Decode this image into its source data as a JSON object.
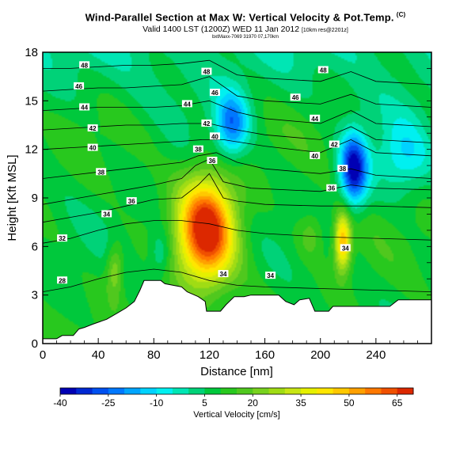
{
  "header": {
    "title": "Wind-Parallel Section at Max W: Vertical Velocity & Pot.Temp.",
    "title_copyright": "(C)",
    "subtitle": "Valid 1400 LST (1200Z) WED 11 Jan 2012",
    "subtitle_suffix": "[10km res@2201z]",
    "line3": "bxtMaxx-7069 31970 07,170km"
  },
  "chart_data": {
    "type": "heatmap",
    "title": "Wind-Parallel Section at Max W: Vertical Velocity & Pot.Temp.",
    "xlabel": "Distance [nm]",
    "ylabel": "Height [Kft MSL]",
    "xlim": [
      0,
      280
    ],
    "ylim": [
      0,
      18
    ],
    "x_ticks": [
      0,
      40,
      80,
      120,
      160,
      200,
      240
    ],
    "y_ticks": [
      0,
      3,
      6,
      9,
      12,
      15,
      18
    ],
    "colorbar": {
      "title": "Vertical Velocity [cm/s]",
      "tick_labels": [
        -40,
        -25,
        -10,
        5,
        20,
        35,
        50,
        65
      ],
      "levels": [
        -40,
        -35,
        -30,
        -25,
        -20,
        -15,
        -10,
        -5,
        0,
        5,
        10,
        15,
        20,
        25,
        30,
        35,
        40,
        45,
        50,
        55,
        60,
        65,
        70
      ],
      "colors": [
        "#0000b4",
        "#0028d2",
        "#0050f0",
        "#0078ff",
        "#00a5ff",
        "#00d2ff",
        "#00f0f0",
        "#00e6b4",
        "#00d278",
        "#00c83c",
        "#28c81e",
        "#50c81e",
        "#78d21e",
        "#a0dc14",
        "#c8e614",
        "#e6f000",
        "#ffe600",
        "#ffc800",
        "#ffa000",
        "#ff7800",
        "#f05000",
        "#dc2800"
      ]
    },
    "terrain": [
      [
        0,
        0.3
      ],
      [
        10,
        0.3
      ],
      [
        14,
        0.5
      ],
      [
        22,
        0.5
      ],
      [
        26,
        0.9
      ],
      [
        30,
        1.0
      ],
      [
        36,
        1.2
      ],
      [
        46,
        1.5
      ],
      [
        54,
        1.9
      ],
      [
        60,
        2.2
      ],
      [
        66,
        2.6
      ],
      [
        70,
        3.3
      ],
      [
        73,
        3.9
      ],
      [
        85,
        3.9
      ],
      [
        88,
        3.7
      ],
      [
        100,
        3.5
      ],
      [
        104,
        3.2
      ],
      [
        112,
        2.9
      ],
      [
        117,
        2.6
      ],
      [
        118,
        2.0
      ],
      [
        128,
        2.0
      ],
      [
        132,
        2.4
      ],
      [
        138,
        2.9
      ],
      [
        145,
        2.9
      ],
      [
        150,
        3.0
      ],
      [
        170,
        3.0
      ],
      [
        175,
        2.6
      ],
      [
        181,
        2.4
      ],
      [
        185,
        2.7
      ],
      [
        192,
        2.8
      ],
      [
        196,
        2.0
      ],
      [
        206,
        2.0
      ],
      [
        209,
        2.3
      ],
      [
        250,
        2.3
      ],
      [
        256,
        2.7
      ],
      [
        280,
        2.7
      ]
    ],
    "updraft_cores": [
      {
        "x": 118,
        "y": 7.0,
        "w": 72,
        "rx": 20,
        "ry": 3.2
      },
      {
        "x": 216,
        "y": 6.3,
        "w": 52,
        "rx": 6,
        "ry": 1.8
      },
      {
        "x": 52,
        "y": 4.6,
        "w": 26,
        "rx": 6,
        "ry": 1.6
      },
      {
        "x": 193,
        "y": 6.8,
        "w": 20,
        "rx": 10,
        "ry": 1.5
      }
    ],
    "downdraft_cores": [
      {
        "x": 224,
        "y": 10.8,
        "w": -38,
        "rx": 10,
        "ry": 2.2
      },
      {
        "x": 136,
        "y": 13.5,
        "w": -22,
        "rx": 12,
        "ry": 2.0
      },
      {
        "x": 260,
        "y": 11.5,
        "w": -8,
        "rx": 20,
        "ry": 2.4
      },
      {
        "x": 85,
        "y": 5.6,
        "w": -4,
        "rx": 8,
        "ry": 1.5
      }
    ],
    "isentropes": [
      {
        "label": "28",
        "points": [
          [
            0,
            3.2
          ],
          [
            20,
            3.5
          ],
          [
            40,
            4.0
          ],
          [
            60,
            4.4
          ],
          [
            80,
            4.6
          ],
          [
            100,
            4.4
          ],
          [
            120,
            3.9
          ],
          [
            140,
            3.6
          ],
          [
            160,
            3.5
          ],
          [
            200,
            3.4
          ],
          [
            240,
            3.3
          ],
          [
            280,
            3.2
          ]
        ]
      },
      {
        "label": "32",
        "points": [
          [
            0,
            6.2
          ],
          [
            20,
            6.5
          ],
          [
            40,
            7.0
          ],
          [
            60,
            7.4
          ],
          [
            80,
            7.6
          ],
          [
            100,
            7.6
          ],
          [
            120,
            7.4
          ],
          [
            140,
            7.0
          ],
          [
            160,
            6.8
          ],
          [
            200,
            6.6
          ],
          [
            240,
            6.5
          ],
          [
            280,
            6.4
          ]
        ]
      },
      {
        "label": "34",
        "points": [
          [
            0,
            7.5
          ],
          [
            20,
            7.8
          ],
          [
            40,
            8.1
          ],
          [
            60,
            8.5
          ],
          [
            80,
            8.9
          ],
          [
            100,
            9.0
          ],
          [
            112,
            9.8
          ],
          [
            120,
            10.5
          ],
          [
            130,
            9.0
          ],
          [
            140,
            8.8
          ],
          [
            160,
            8.6
          ],
          [
            200,
            8.5
          ],
          [
            240,
            8.5
          ],
          [
            280,
            8.4
          ]
        ]
      },
      {
        "label": "36",
        "points": [
          [
            0,
            8.6
          ],
          [
            20,
            8.9
          ],
          [
            40,
            9.2
          ],
          [
            60,
            9.5
          ],
          [
            80,
            9.8
          ],
          [
            100,
            10.2
          ],
          [
            110,
            11.0
          ],
          [
            120,
            11.4
          ],
          [
            130,
            10.0
          ],
          [
            150,
            9.6
          ],
          [
            200,
            9.4
          ],
          [
            222,
            9.8
          ],
          [
            240,
            9.6
          ],
          [
            280,
            9.5
          ]
        ]
      },
      {
        "label": "38",
        "points": [
          [
            0,
            10.2
          ],
          [
            20,
            10.4
          ],
          [
            40,
            10.6
          ],
          [
            60,
            10.8
          ],
          [
            80,
            11.0
          ],
          [
            100,
            11.2
          ],
          [
            112,
            11.6
          ],
          [
            125,
            11.8
          ],
          [
            140,
            11.2
          ],
          [
            160,
            10.8
          ],
          [
            200,
            10.5
          ],
          [
            222,
            10.8
          ],
          [
            240,
            10.4
          ],
          [
            280,
            10.2
          ]
        ]
      },
      {
        "label": "40",
        "points": [
          [
            0,
            12.0
          ],
          [
            20,
            12.1
          ],
          [
            40,
            12.2
          ],
          [
            60,
            12.3
          ],
          [
            80,
            12.4
          ],
          [
            100,
            12.5
          ],
          [
            115,
            12.6
          ],
          [
            130,
            12.6
          ],
          [
            160,
            12.2
          ],
          [
            200,
            11.8
          ],
          [
            222,
            12.6
          ],
          [
            240,
            11.8
          ],
          [
            280,
            11.6
          ]
        ]
      },
      {
        "label": "42",
        "points": [
          [
            0,
            13.2
          ],
          [
            20,
            13.3
          ],
          [
            40,
            13.4
          ],
          [
            60,
            13.5
          ],
          [
            80,
            13.5
          ],
          [
            100,
            13.6
          ],
          [
            120,
            13.6
          ],
          [
            140,
            13.2
          ],
          [
            160,
            12.9
          ],
          [
            200,
            12.6
          ],
          [
            222,
            13.4
          ],
          [
            240,
            12.6
          ],
          [
            280,
            12.4
          ]
        ]
      },
      {
        "label": "44",
        "points": [
          [
            0,
            14.4
          ],
          [
            20,
            14.5
          ],
          [
            40,
            14.6
          ],
          [
            60,
            14.6
          ],
          [
            80,
            14.6
          ],
          [
            100,
            14.7
          ],
          [
            120,
            15.0
          ],
          [
            140,
            14.3
          ],
          [
            160,
            13.9
          ],
          [
            200,
            13.6
          ],
          [
            222,
            14.4
          ],
          [
            240,
            13.6
          ],
          [
            280,
            13.4
          ]
        ]
      },
      {
        "label": "46",
        "points": [
          [
            0,
            15.6
          ],
          [
            20,
            15.7
          ],
          [
            40,
            15.8
          ],
          [
            60,
            15.8
          ],
          [
            80,
            15.9
          ],
          [
            100,
            16.0
          ],
          [
            120,
            16.5
          ],
          [
            140,
            15.3
          ],
          [
            160,
            15.0
          ],
          [
            200,
            14.8
          ],
          [
            222,
            15.4
          ],
          [
            240,
            14.8
          ],
          [
            280,
            14.6
          ]
        ]
      },
      {
        "label": "48",
        "points": [
          [
            0,
            17.0
          ],
          [
            20,
            17.0
          ],
          [
            40,
            17.1
          ],
          [
            60,
            17.2
          ],
          [
            80,
            17.2
          ],
          [
            100,
            17.3
          ],
          [
            120,
            17.5
          ],
          [
            140,
            16.6
          ],
          [
            160,
            16.4
          ],
          [
            200,
            16.2
          ],
          [
            222,
            16.8
          ],
          [
            240,
            16.2
          ],
          [
            280,
            16.0
          ]
        ]
      }
    ],
    "contour_labels": [
      {
        "label": "48",
        "x": 30,
        "y": 17.2
      },
      {
        "label": "46",
        "x": 26,
        "y": 15.9
      },
      {
        "label": "44",
        "x": 30,
        "y": 14.6
      },
      {
        "label": "42",
        "x": 36,
        "y": 13.3
      },
      {
        "label": "40",
        "x": 36,
        "y": 12.1
      },
      {
        "label": "38",
        "x": 42,
        "y": 10.6
      },
      {
        "label": "36",
        "x": 64,
        "y": 8.8
      },
      {
        "label": "34",
        "x": 46,
        "y": 8.0
      },
      {
        "label": "32",
        "x": 14,
        "y": 6.5
      },
      {
        "label": "28",
        "x": 14,
        "y": 3.9
      },
      {
        "label": "48",
        "x": 118,
        "y": 16.8
      },
      {
        "label": "46",
        "x": 124,
        "y": 15.5
      },
      {
        "label": "44",
        "x": 104,
        "y": 14.8
      },
      {
        "label": "42",
        "x": 118,
        "y": 13.6
      },
      {
        "label": "40",
        "x": 124,
        "y": 12.8
      },
      {
        "label": "38",
        "x": 112,
        "y": 12.0
      },
      {
        "label": "36",
        "x": 122,
        "y": 11.3
      },
      {
        "label": "34",
        "x": 130,
        "y": 4.3
      },
      {
        "label": "34",
        "x": 164,
        "y": 4.2
      },
      {
        "label": "48",
        "x": 202,
        "y": 16.9
      },
      {
        "label": "46",
        "x": 182,
        "y": 15.2
      },
      {
        "label": "44",
        "x": 196,
        "y": 13.9
      },
      {
        "label": "42",
        "x": 210,
        "y": 12.3
      },
      {
        "label": "40",
        "x": 196,
        "y": 11.6
      },
      {
        "label": "38",
        "x": 216,
        "y": 10.8
      },
      {
        "label": "36",
        "x": 208,
        "y": 9.6
      },
      {
        "label": "34",
        "x": 218,
        "y": 5.9
      }
    ],
    "legend": "bottom"
  }
}
